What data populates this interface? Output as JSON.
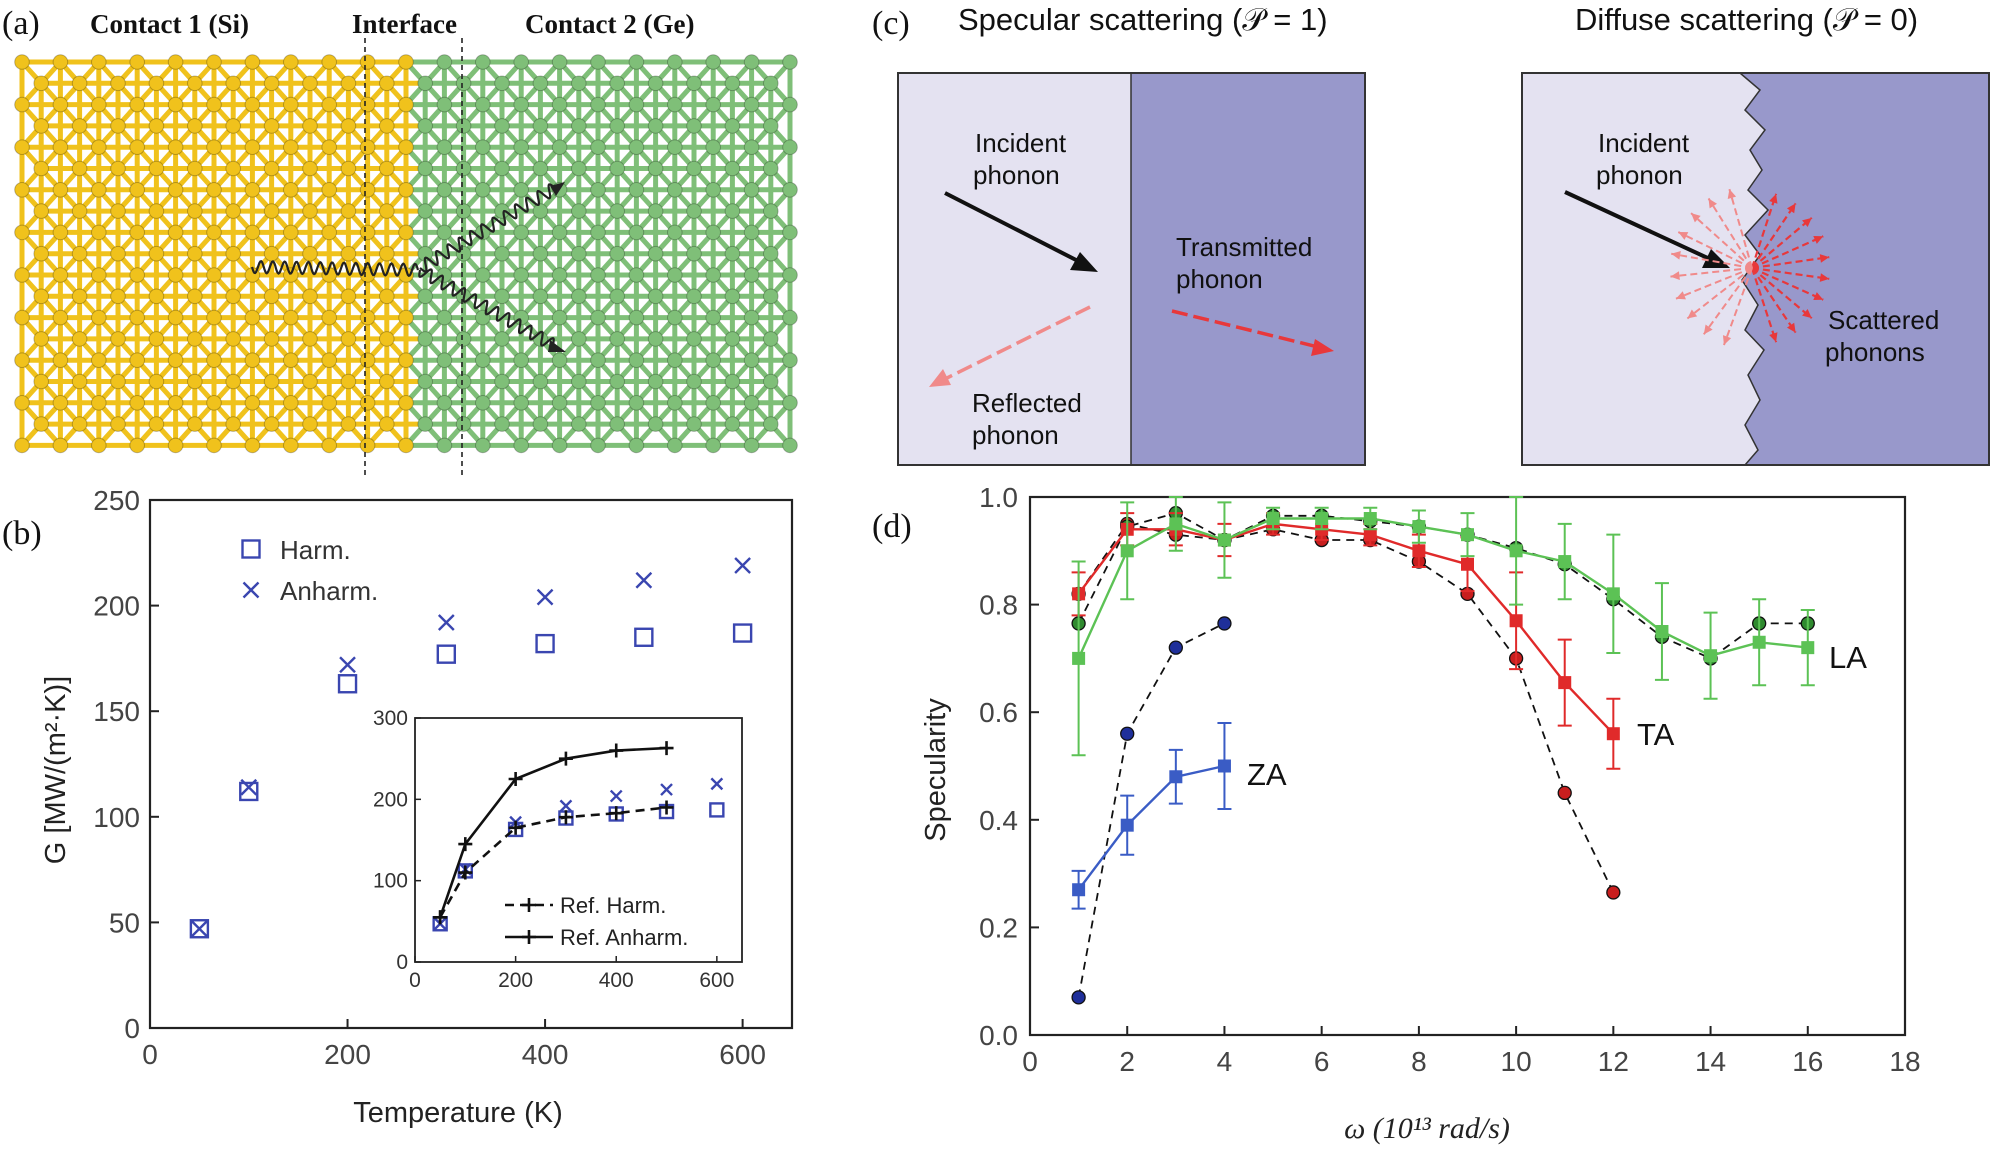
{
  "panels": {
    "a": {
      "letter": "(a)",
      "contact1": "Contact 1 (Si)",
      "interface": "Interface",
      "contact2": "Contact 2 (Ge)",
      "colors": {
        "si": "#f0c21c",
        "ge": "#7fbf78"
      }
    },
    "c": {
      "letter": "(c)",
      "specular_title": "Specular scattering (𝒫 = 1)",
      "diffuse_title": "Diffuse scattering (𝒫 = 0)",
      "incident_1": "Incident",
      "incident_2": "phonon",
      "transmitted_1": "Transmitted",
      "transmitted_2": "phonon",
      "reflected_1": "Reflected",
      "reflected_2": "phonon",
      "scattered_1": "Scattered",
      "scattered_2": "phonons",
      "colors": {
        "left": "#e4e2f1",
        "right": "#9898cb",
        "arrow": "#e8383b",
        "arrow_light": "#f08a8a"
      }
    }
  },
  "chart_data": [
    {
      "id": "b",
      "letter": "(b)",
      "type": "scatter",
      "xlabel": "Temperature (K)",
      "ylabel": "G [MW/(m²·K)]",
      "xlim": [
        0,
        650
      ],
      "ylim": [
        0,
        250
      ],
      "xticks": [
        0,
        200,
        400,
        600
      ],
      "yticks": [
        0,
        50,
        100,
        150,
        200,
        250
      ],
      "color": "#3a46b0",
      "series": [
        {
          "name": "Harm.",
          "marker": "square",
          "x": [
            50,
            100,
            200,
            300,
            400,
            500,
            600
          ],
          "y": [
            47,
            112,
            163,
            177,
            182,
            185,
            187
          ]
        },
        {
          "name": "Anharm.",
          "marker": "x",
          "x": [
            50,
            100,
            200,
            300,
            400,
            500,
            600
          ],
          "y": [
            47,
            114,
            172,
            192,
            204,
            212,
            219
          ]
        }
      ],
      "inset": {
        "xlim": [
          0,
          650
        ],
        "ylim": [
          0,
          300
        ],
        "xticks": [
          0,
          200,
          400,
          600
        ],
        "yticks": [
          0,
          100,
          200,
          300
        ],
        "series": [
          {
            "name": "Harm.",
            "marker": "square",
            "x": [
              50,
              100,
              200,
              300,
              400,
              500,
              600
            ],
            "y": [
              47,
              112,
              163,
              177,
              182,
              185,
              187
            ]
          },
          {
            "name": "Anharm.",
            "marker": "x",
            "x": [
              50,
              100,
              200,
              300,
              400,
              500,
              600
            ],
            "y": [
              47,
              114,
              172,
              192,
              204,
              212,
              219
            ]
          },
          {
            "name": "Ref. Harm.",
            "style": "dashed-plus",
            "x": [
              50,
              100,
              200,
              300,
              400,
              500
            ],
            "y": [
              55,
              110,
              165,
              178,
              183,
              190
            ]
          },
          {
            "name": "Ref. Anharm.",
            "style": "solid-plus",
            "x": [
              50,
              100,
              200,
              300,
              400,
              500
            ],
            "y": [
              55,
              145,
              225,
              250,
              260,
              263
            ]
          }
        ]
      }
    },
    {
      "id": "d",
      "letter": "(d)",
      "type": "line",
      "xlabel": "ω (10¹³ rad/s)",
      "ylabel": "Specularity",
      "xlim": [
        0,
        18
      ],
      "ylim": [
        0,
        1.0
      ],
      "xticks": [
        0,
        2,
        4,
        6,
        8,
        10,
        12,
        14,
        16,
        18
      ],
      "yticks": [
        "0.0",
        "0.2",
        "0.4",
        "0.6",
        "0.8",
        "1.0"
      ],
      "series": [
        {
          "name": "ZA",
          "color": "#3a5cc5",
          "marker": "square",
          "x": [
            1,
            2,
            3,
            4
          ],
          "y": [
            0.27,
            0.39,
            0.48,
            0.5
          ],
          "err": [
            0.035,
            0.055,
            0.05,
            0.08
          ]
        },
        {
          "name": "ZA ref",
          "color": "#1f2f9a",
          "marker": "circle",
          "dashed": true,
          "x": [
            1,
            2,
            3,
            4
          ],
          "y": [
            0.07,
            0.56,
            0.72,
            0.765
          ]
        },
        {
          "name": "TA",
          "color": "#e02a2a",
          "marker": "square",
          "x": [
            1,
            2,
            3,
            4,
            5,
            6,
            7,
            8,
            9,
            10,
            11,
            12
          ],
          "y": [
            0.82,
            0.94,
            0.94,
            0.92,
            0.95,
            0.94,
            0.93,
            0.9,
            0.875,
            0.77,
            0.655,
            0.56
          ],
          "err": [
            0.04,
            0.03,
            0.03,
            0.03,
            0.02,
            0.02,
            0.02,
            0.03,
            0.05,
            0.09,
            0.08,
            0.065
          ]
        },
        {
          "name": "TA ref",
          "color": "#c81e1e",
          "marker": "circle",
          "dashed": true,
          "x": [
            1,
            2,
            3,
            4,
            5,
            6,
            7,
            8,
            9,
            10,
            11,
            12
          ],
          "y": [
            0.82,
            0.95,
            0.93,
            0.92,
            0.94,
            0.92,
            0.92,
            0.88,
            0.82,
            0.7,
            0.45,
            0.265
          ]
        },
        {
          "name": "LA",
          "color": "#5cc255",
          "marker": "square",
          "x": [
            1,
            2,
            3,
            4,
            5,
            6,
            7,
            8,
            9,
            10,
            11,
            12,
            13,
            14,
            15,
            16
          ],
          "y": [
            0.7,
            0.9,
            0.95,
            0.92,
            0.96,
            0.96,
            0.96,
            0.945,
            0.93,
            0.9,
            0.88,
            0.82,
            0.75,
            0.705,
            0.73,
            0.72
          ],
          "err": [
            0.18,
            0.09,
            0.05,
            0.07,
            0.02,
            0.02,
            0.02,
            0.03,
            0.04,
            0.1,
            0.07,
            0.11,
            0.09,
            0.08,
            0.08,
            0.07
          ]
        },
        {
          "name": "LA ref",
          "color": "#2f8a2f",
          "marker": "circle",
          "dashed": true,
          "x": [
            1,
            2,
            3,
            4,
            5,
            6,
            7,
            8,
            9,
            10,
            11,
            12,
            13,
            14,
            15,
            16
          ],
          "y": [
            0.765,
            0.945,
            0.97,
            0.92,
            0.965,
            0.965,
            0.955,
            0.945,
            0.93,
            0.905,
            0.875,
            0.81,
            0.74,
            0.7,
            0.765,
            0.765
          ]
        }
      ],
      "labels": {
        "ZA": "ZA",
        "TA": "TA",
        "LA": "LA"
      }
    }
  ]
}
